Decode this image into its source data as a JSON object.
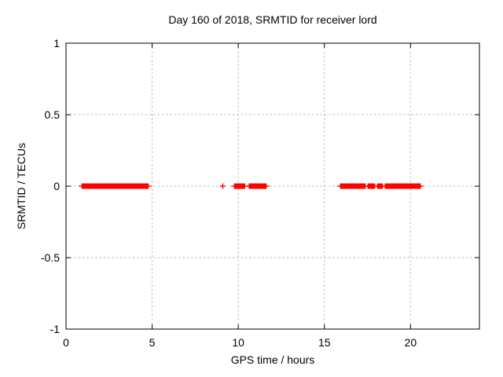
{
  "page_title": "Day 160 of 2018, SRMTID for receiver lord",
  "chart_data": {
    "type": "scatter",
    "title": "Day 160 of 2018, SRMTID for receiver lord",
    "xlabel": "GPS time / hours",
    "ylabel": "SRMTID / TECUs",
    "xlim": [
      0,
      24
    ],
    "ylim": [
      -1,
      1
    ],
    "xticks": [
      0,
      5,
      10,
      15,
      20
    ],
    "yticks": [
      -1,
      -0.5,
      0,
      0.5,
      1
    ],
    "grid": true,
    "legend": "none",
    "marker": "plus",
    "marker_color": "#ff0000",
    "y_value": 0,
    "note": "Dense red '+' markers all at SRMTID = 0 TECUs; coverage given as start/end GPS hours",
    "segments_hours": [
      {
        "start": 0.9,
        "end": 4.8
      },
      {
        "start": 9.75,
        "end": 10.4
      },
      {
        "start": 10.6,
        "end": 11.65
      },
      {
        "start": 15.9,
        "end": 17.4
      },
      {
        "start": 17.5,
        "end": 17.95
      },
      {
        "start": 18.05,
        "end": 18.4
      },
      {
        "start": 18.5,
        "end": 20.6
      }
    ],
    "isolated_points_hours": [
      9.1
    ]
  },
  "colors": {
    "background": "#ffffff",
    "frame": "#000000",
    "grid": "#b8b8b8",
    "text": "#000000",
    "data": "#ff0000"
  }
}
